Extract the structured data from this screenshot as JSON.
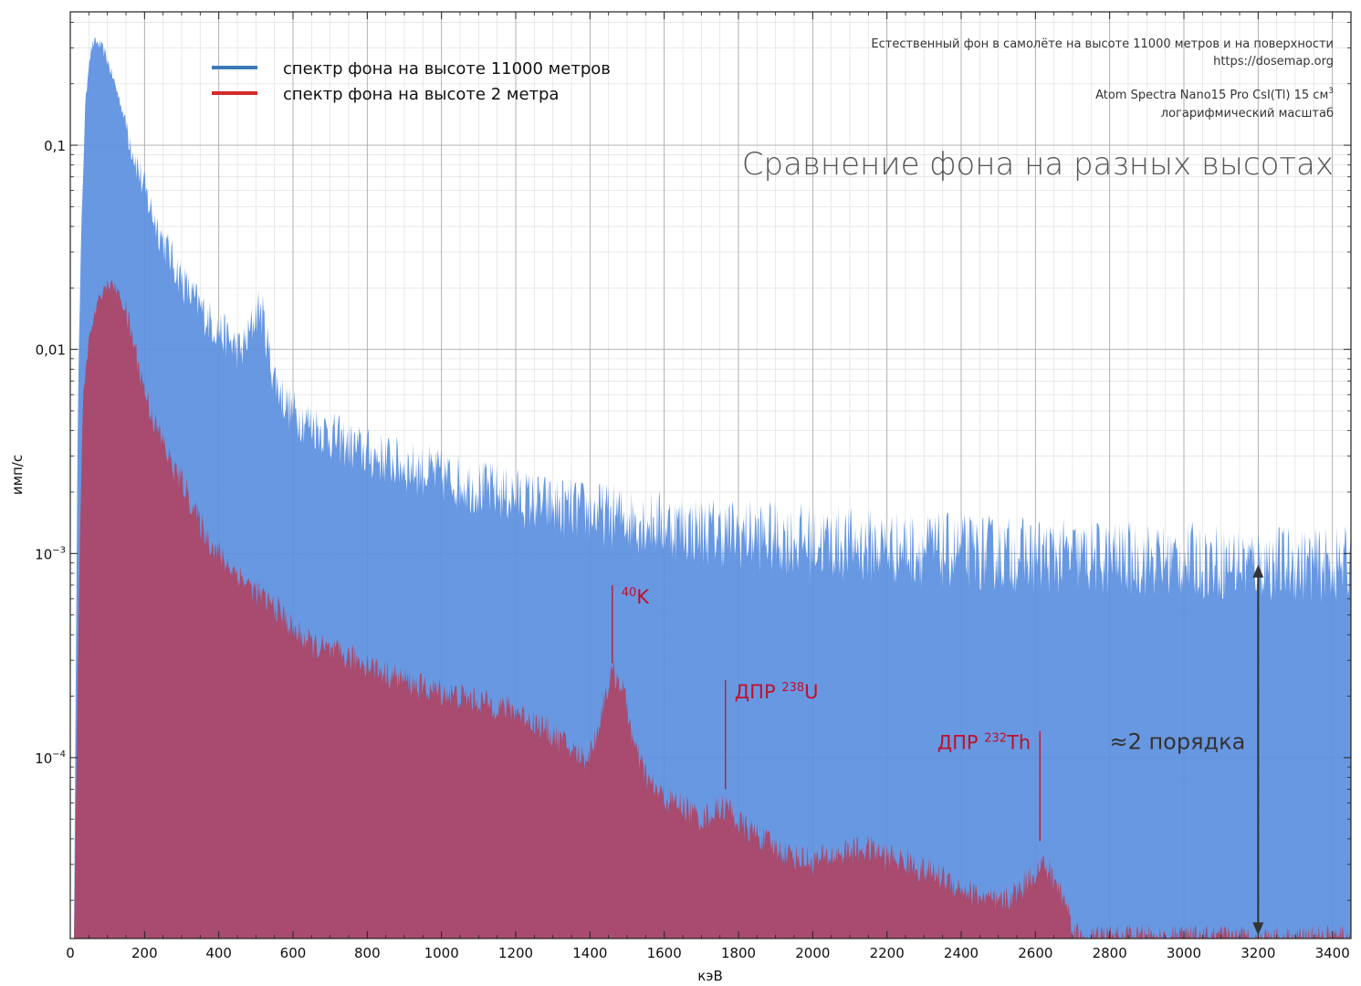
{
  "chart_data": {
    "type": "area",
    "title": "Сравнение фона на разных высотах",
    "info_lines": [
      "Естественный фон в самолёте на высоте 11000 метров и на поверхности",
      "https://dosemap.org",
      "Atom Spectra Nano15 Pro CsI(Tl) 15 см",
      "логарифмический масштаб"
    ],
    "info_superscript": "3",
    "xlabel": "кэВ",
    "ylabel": "имп/с",
    "xlim": [
      0,
      3450
    ],
    "ylim": [
      1.3e-05,
      0.45
    ],
    "yscale": "log",
    "grid": true,
    "x_ticks": [
      0,
      200,
      400,
      600,
      800,
      1000,
      1200,
      1400,
      1600,
      1800,
      2000,
      2200,
      2400,
      2600,
      2800,
      3000,
      3200,
      3400
    ],
    "y_ticks": [
      {
        "value": 0.1,
        "label": "0,1"
      },
      {
        "value": 0.01,
        "label": "0,01"
      },
      {
        "value": 0.001,
        "label": "10",
        "sup": "−3"
      },
      {
        "value": 0.0001,
        "label": "10",
        "sup": "−4"
      }
    ],
    "legend_position": "top-left",
    "series": [
      {
        "name": "спектр фона на высоте 11000 метров",
        "legend_color": "#3a7ab8",
        "fill_color": "#5b8fe0",
        "points": [
          [
            10,
            1.3e-05
          ],
          [
            20,
            0.005
          ],
          [
            30,
            0.04
          ],
          [
            40,
            0.15
          ],
          [
            50,
            0.26
          ],
          [
            60,
            0.31
          ],
          [
            70,
            0.32
          ],
          [
            80,
            0.31
          ],
          [
            90,
            0.29
          ],
          [
            100,
            0.26
          ],
          [
            120,
            0.2
          ],
          [
            140,
            0.15
          ],
          [
            160,
            0.11
          ],
          [
            180,
            0.08
          ],
          [
            200,
            0.06
          ],
          [
            220,
            0.047
          ],
          [
            240,
            0.038
          ],
          [
            260,
            0.031
          ],
          [
            280,
            0.026
          ],
          [
            300,
            0.022
          ],
          [
            320,
            0.019
          ],
          [
            340,
            0.017
          ],
          [
            360,
            0.015
          ],
          [
            380,
            0.0135
          ],
          [
            400,
            0.0125
          ],
          [
            420,
            0.0115
          ],
          [
            440,
            0.0105
          ],
          [
            460,
            0.0098
          ],
          [
            480,
            0.0115
          ],
          [
            500,
            0.015
          ],
          [
            510,
            0.016
          ],
          [
            520,
            0.014
          ],
          [
            540,
            0.0085
          ],
          [
            560,
            0.0065
          ],
          [
            580,
            0.0055
          ],
          [
            600,
            0.0049
          ],
          [
            650,
            0.0043
          ],
          [
            700,
            0.0038
          ],
          [
            750,
            0.0034
          ],
          [
            800,
            0.0031
          ],
          [
            900,
            0.0027
          ],
          [
            1000,
            0.0024
          ],
          [
            1100,
            0.0021
          ],
          [
            1200,
            0.0019
          ],
          [
            1300,
            0.0017
          ],
          [
            1400,
            0.0016
          ],
          [
            1500,
            0.0015
          ],
          [
            1600,
            0.0014
          ],
          [
            1700,
            0.0013
          ],
          [
            1800,
            0.00125
          ],
          [
            1900,
            0.0012
          ],
          [
            2000,
            0.00115
          ],
          [
            2200,
            0.00108
          ],
          [
            2400,
            0.00102
          ],
          [
            2600,
            0.00098
          ],
          [
            2800,
            0.00095
          ],
          [
            3000,
            0.00093
          ],
          [
            3200,
            0.0009
          ],
          [
            3450,
            0.00088
          ]
        ]
      },
      {
        "name": "спектр фона на высоте 2 метра",
        "legend_color": "#d42a2a",
        "fill_color": "#b0405e",
        "points": [
          [
            10,
            1.3e-05
          ],
          [
            25,
            0.001
          ],
          [
            35,
            0.006
          ],
          [
            50,
            0.011
          ],
          [
            70,
            0.016
          ],
          [
            90,
            0.02
          ],
          [
            110,
            0.021
          ],
          [
            130,
            0.019
          ],
          [
            150,
            0.015
          ],
          [
            170,
            0.011
          ],
          [
            190,
            0.0075
          ],
          [
            210,
            0.0055
          ],
          [
            230,
            0.0042
          ],
          [
            250,
            0.0035
          ],
          [
            270,
            0.0028
          ],
          [
            290,
            0.0024
          ],
          [
            310,
            0.0021
          ],
          [
            330,
            0.0017
          ],
          [
            350,
            0.0014
          ],
          [
            370,
            0.0012
          ],
          [
            390,
            0.00105
          ],
          [
            420,
            0.0009
          ],
          [
            450,
            0.0008
          ],
          [
            480,
            0.0007
          ],
          [
            500,
            0.00065
          ],
          [
            520,
            0.0006
          ],
          [
            540,
            0.00057
          ],
          [
            560,
            0.00053
          ],
          [
            580,
            0.00048
          ],
          [
            600,
            0.00042
          ],
          [
            620,
            0.0004
          ],
          [
            650,
            0.00036
          ],
          [
            700,
            0.00033
          ],
          [
            750,
            0.00031
          ],
          [
            800,
            0.00029
          ],
          [
            850,
            0.00026
          ],
          [
            900,
            0.00024
          ],
          [
            950,
            0.00022
          ],
          [
            1000,
            0.00021
          ],
          [
            1050,
            0.0002
          ],
          [
            1100,
            0.00019
          ],
          [
            1150,
            0.00018
          ],
          [
            1200,
            0.00017
          ],
          [
            1250,
            0.00015
          ],
          [
            1300,
            0.00013
          ],
          [
            1350,
            0.00011
          ],
          [
            1380,
            0.0001
          ],
          [
            1400,
            0.000105
          ],
          [
            1420,
            0.000135
          ],
          [
            1440,
            0.0002
          ],
          [
            1460,
            0.00026
          ],
          [
            1480,
            0.00024
          ],
          [
            1500,
            0.00018
          ],
          [
            1520,
            0.00011
          ],
          [
            1560,
            7.5e-05
          ],
          [
            1600,
            6.3e-05
          ],
          [
            1650,
            5.8e-05
          ],
          [
            1700,
            5e-05
          ],
          [
            1740,
            5.5e-05
          ],
          [
            1760,
            5.8e-05
          ],
          [
            1780,
            5.5e-05
          ],
          [
            1800,
            4.8e-05
          ],
          [
            1850,
            4.2e-05
          ],
          [
            1900,
            3.6e-05
          ],
          [
            1950,
            3.3e-05
          ],
          [
            2000,
            3.1e-05
          ],
          [
            2050,
            3.3e-05
          ],
          [
            2100,
            3.5e-05
          ],
          [
            2150,
            3.6e-05
          ],
          [
            2200,
            3.3e-05
          ],
          [
            2250,
            3.1e-05
          ],
          [
            2300,
            2.8e-05
          ],
          [
            2350,
            2.6e-05
          ],
          [
            2400,
            2.3e-05
          ],
          [
            2450,
            2.1e-05
          ],
          [
            2500,
            1.9e-05
          ],
          [
            2550,
            2.2e-05
          ],
          [
            2600,
            2.8e-05
          ],
          [
            2620,
            3e-05
          ],
          [
            2640,
            2.7e-05
          ],
          [
            2680,
            2e-05
          ],
          [
            2700,
            1.5e-05
          ],
          [
            2720,
            1.3e-05
          ],
          [
            3450,
            1.3e-05
          ]
        ]
      }
    ],
    "annotations": [
      {
        "label": "K",
        "sup": "40",
        "x": 1460,
        "y_top": 0.0007,
        "y_bottom": 0.00029,
        "color": "#c0102a"
      },
      {
        "label": "ДПР ",
        "sup": "238",
        "after": "U",
        "x": 1765,
        "y_top": 0.00024,
        "y_bottom": 7e-05,
        "color": "#c0102a"
      },
      {
        "label": "ДПР ",
        "sup": "232",
        "after": "Th",
        "x": 2612,
        "y_top": 0.000135,
        "y_bottom": 3.9e-05,
        "color": "#c0102a"
      }
    ],
    "arrow_annotation": {
      "label": "≈2 порядка",
      "x": 3200,
      "y_top": 0.00088,
      "y_bottom": 1.35e-05,
      "color": "#333333"
    }
  }
}
